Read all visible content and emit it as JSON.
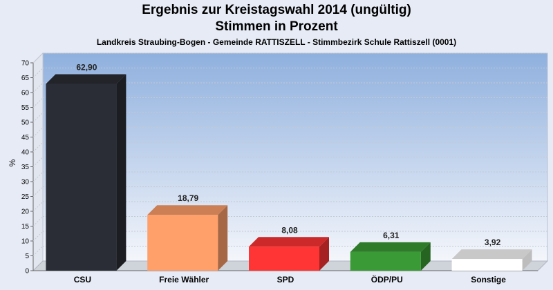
{
  "chart_data": {
    "type": "bar",
    "title": "Ergebnis zur Kreistagswahl 2014 (ungültig)",
    "title2": "Stimmen in Prozent",
    "subtitle": "Landkreis Straubing-Bogen - Gemeinde RATTISZELL - Stimmbezirk Schule Rattiszell (0001)",
    "ylabel": "%",
    "ylim": [
      0,
      70
    ],
    "yticks": [
      "0",
      "5",
      "10",
      "15",
      "20",
      "25",
      "30",
      "35",
      "40",
      "45",
      "50",
      "55",
      "60",
      "65",
      "70"
    ],
    "categories": [
      "CSU",
      "Freie Wähler",
      "SPD",
      "ÖDP/PU",
      "Sonstige"
    ],
    "values": [
      62.9,
      18.79,
      8.08,
      6.31,
      3.92
    ],
    "value_labels": [
      "62,90",
      "18,79",
      "8,08",
      "6,31",
      "3,92"
    ],
    "colors": [
      "#2a2d35",
      "#ff9f6a",
      "#ff3535",
      "#3a9a35",
      "#ffffff"
    ],
    "grid": true
  }
}
